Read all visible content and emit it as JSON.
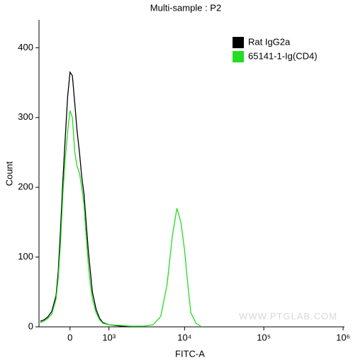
{
  "chart_data": {
    "type": "line",
    "title": "Multi-sample : P2",
    "xlabel": "FITC-A",
    "ylabel": "Count",
    "watermark": "WWW.PTGLAB.COM",
    "xscale": "biexponential",
    "legend": "upper right",
    "xlim": [
      -740,
      1000000
    ],
    "xticks": [
      0,
      {
        "value": 1000,
        "label": "10³"
      },
      {
        "value": 10000,
        "label": "10⁴"
      },
      {
        "value": 100000,
        "label": "10⁵"
      },
      {
        "value": 1000000,
        "label": "10⁶"
      }
    ],
    "ylim": [
      0,
      440
    ],
    "yticks": [
      0,
      100,
      200,
      300,
      400
    ],
    "series": [
      {
        "name": "Rat IgG2a",
        "color": "#000000",
        "x": [
          -700,
          -600,
          -500,
          -400,
          -300,
          -250,
          -200,
          -150,
          -100,
          -50,
          0,
          50,
          100,
          150,
          200,
          250,
          300,
          350,
          400,
          450,
          500,
          600,
          700,
          800,
          1000,
          1500,
          2000
        ],
        "values": [
          8,
          10,
          14,
          22,
          45,
          80,
          140,
          210,
          270,
          330,
          365,
          360,
          320,
          280,
          250,
          215,
          190,
          150,
          110,
          80,
          50,
          25,
          12,
          6,
          3,
          1,
          0
        ]
      },
      {
        "name": "65141-1-Ig(CD4)",
        "color": "#22dd22",
        "x": [
          -700,
          -600,
          -500,
          -400,
          -300,
          -250,
          -200,
          -150,
          -100,
          -50,
          0,
          50,
          100,
          150,
          200,
          250,
          300,
          350,
          400,
          450,
          500,
          600,
          700,
          800,
          1000,
          1500,
          2000,
          3000,
          4000,
          5000,
          6000,
          7000,
          8000,
          9000,
          10000,
          11000,
          12000,
          14000,
          16000
        ],
        "values": [
          6,
          8,
          12,
          18,
          40,
          70,
          120,
          190,
          240,
          280,
          310,
          300,
          250,
          230,
          220,
          200,
          175,
          130,
          90,
          60,
          40,
          20,
          10,
          5,
          3,
          2,
          1,
          1,
          3,
          15,
          60,
          130,
          170,
          150,
          110,
          60,
          20,
          5,
          1
        ]
      }
    ]
  }
}
